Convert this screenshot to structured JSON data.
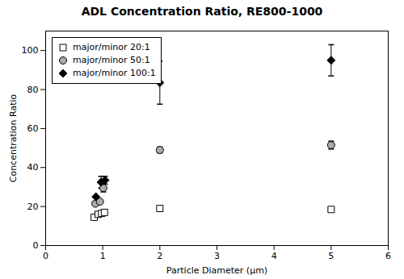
{
  "chart_data": {
    "type": "scatter",
    "title": "ADL Concentration Ratio, RE800-1000",
    "xlabel": "Particle Diameter (μm)",
    "ylabel": "Concentration Ratio",
    "xlim": [
      0,
      6
    ],
    "ylim": [
      0,
      110
    ],
    "xticks": [
      0,
      1,
      2,
      3,
      4,
      5,
      6
    ],
    "yticks": [
      0,
      20,
      40,
      60,
      80,
      100
    ],
    "legend": "upper left",
    "series": [
      {
        "name": "major/minor 20:1",
        "marker": "square",
        "color": "white",
        "x": [
          0.85,
          0.92,
          0.98,
          1.03,
          2.0,
          5.0
        ],
        "values": [
          14.5,
          16.0,
          16.5,
          17.0,
          19.0,
          18.5
        ],
        "yerr_lo": [
          0,
          0,
          0,
          0,
          0,
          0
        ],
        "yerr_hi": [
          0,
          0,
          0,
          0,
          0,
          0
        ]
      },
      {
        "name": "major/minor 50:1",
        "marker": "circle",
        "color": "#aaaaaa",
        "x": [
          0.87,
          0.95,
          1.01,
          2.0,
          5.0
        ],
        "values": [
          21.5,
          22.5,
          29.5,
          49.0,
          51.5
        ],
        "yerr_lo": [
          0,
          0,
          2,
          1.5,
          2
        ],
        "yerr_hi": [
          0,
          0,
          2,
          1.5,
          2
        ]
      },
      {
        "name": "major/minor 100:1",
        "marker": "diamond",
        "color": "black",
        "x": [
          0.88,
          0.97,
          1.04,
          2.0,
          5.0
        ],
        "values": [
          25.0,
          32.5,
          33.5,
          83.5,
          95.0
        ],
        "yerr_lo": [
          0,
          3,
          2,
          11,
          8
        ],
        "yerr_hi": [
          0,
          3,
          2,
          11,
          8
        ]
      }
    ]
  }
}
